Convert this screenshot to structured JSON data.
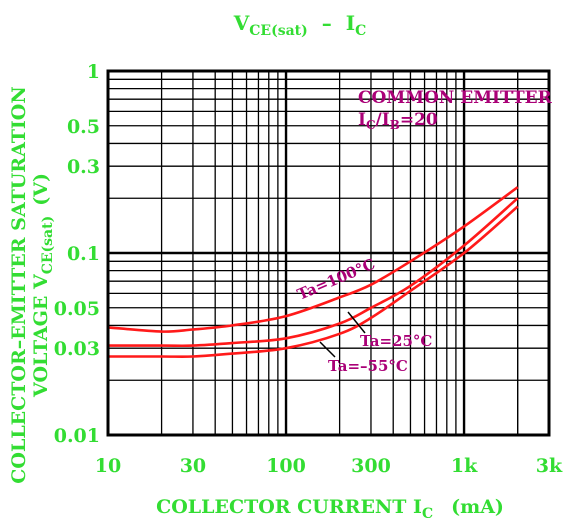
{
  "chart_data": {
    "type": "line",
    "title": "VCE(sat) – IC",
    "title_main": "V",
    "title_sub": "CE(sat)",
    "title_dash": "–",
    "title_i": "I",
    "title_i_sub": "C",
    "xlabel_main": "COLLECTOR CURRENT I",
    "xlabel_sub": "C",
    "xlabel_unit": "(mA)",
    "ylabel_line1": "COLLECTOR–EMITTER SATURATION",
    "ylabel_line2_main": "VOLTAGE V",
    "ylabel_line2_sub": "CE(sat)",
    "ylabel_unit": "(V)",
    "x_scale": "log",
    "y_scale": "log",
    "xlim": [
      10,
      3000
    ],
    "ylim": [
      0.01,
      1
    ],
    "x_ticks": [
      {
        "value": 10,
        "label": "10"
      },
      {
        "value": 30,
        "label": "30"
      },
      {
        "value": 100,
        "label": "100"
      },
      {
        "value": 300,
        "label": "300"
      },
      {
        "value": 1000,
        "label": "1k"
      },
      {
        "value": 3000,
        "label": "3k"
      }
    ],
    "y_ticks": [
      {
        "value": 1,
        "label": "1"
      },
      {
        "value": 0.5,
        "label": "0.5"
      },
      {
        "value": 0.3,
        "label": "0.3"
      },
      {
        "value": 0.1,
        "label": "0.1"
      },
      {
        "value": 0.05,
        "label": "0.05"
      },
      {
        "value": 0.03,
        "label": "0.03"
      },
      {
        "value": 0.01,
        "label": "0.01"
      }
    ],
    "annotation_line1": "COMMON EMITTER",
    "annotation_line2_i": "I",
    "annotation_line2_c": "C",
    "annotation_line2_slash": "/I",
    "annotation_line2_b": "B",
    "annotation_line2_val": "=20",
    "grid": true,
    "series": [
      {
        "name": "Ta=100°C",
        "x": [
          10,
          20,
          30,
          50,
          100,
          200,
          300,
          500,
          1000,
          2000
        ],
        "y": [
          0.039,
          0.037,
          0.038,
          0.04,
          0.045,
          0.057,
          0.067,
          0.09,
          0.14,
          0.23
        ]
      },
      {
        "name": "Ta=25°C",
        "x": [
          10,
          20,
          30,
          50,
          100,
          200,
          300,
          500,
          1000,
          2000
        ],
        "y": [
          0.031,
          0.031,
          0.031,
          0.032,
          0.034,
          0.041,
          0.05,
          0.066,
          0.11,
          0.2
        ]
      },
      {
        "name": "Ta=–55°C",
        "x": [
          10,
          20,
          30,
          50,
          100,
          200,
          300,
          500,
          1000,
          2000
        ],
        "y": [
          0.027,
          0.027,
          0.027,
          0.028,
          0.03,
          0.036,
          0.044,
          0.062,
          0.1,
          0.18
        ]
      }
    ],
    "colors": {
      "axis_text": "#33dd33",
      "annotation_text": "#aa0077",
      "curves": "#ff1a1a",
      "grid": "#000000"
    }
  }
}
